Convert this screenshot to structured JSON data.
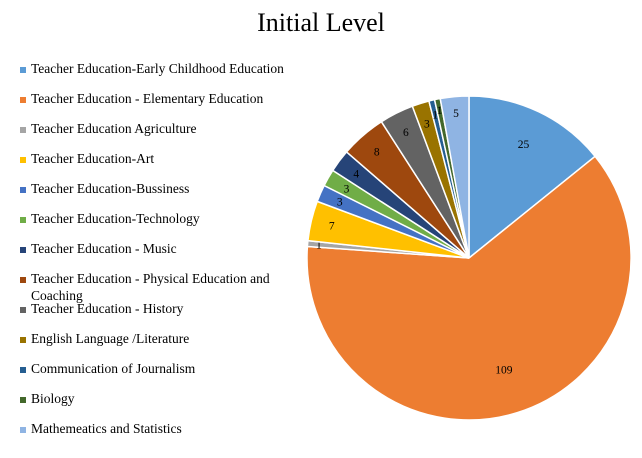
{
  "chart_data": {
    "type": "pie",
    "title": "Initial Level",
    "legend_position": "left",
    "categories": [
      "Teacher Education-Early Childhood Education",
      "Teacher Education - Elementary Education",
      "Teacher Education Agriculture",
      "Teacher Education-Art",
      "Teacher Education-Bussiness",
      "Teacher Education-Technology",
      "Teacher Education - Music",
      "Teacher Education - Physical Education and Coaching",
      "Teacher Education - History",
      "English Language /Literature",
      "Communication of Journalism",
      "Biology",
      "Mathemeatics and Statistics"
    ],
    "values": [
      25,
      109,
      1,
      7,
      3,
      3,
      4,
      8,
      6,
      3,
      1,
      1,
      5
    ],
    "colors": [
      "#5B9BD5",
      "#ED7D31",
      "#A5A5A5",
      "#FFC000",
      "#4472C4",
      "#70AD47",
      "#264478",
      "#9E480E",
      "#636363",
      "#997300",
      "#255E91",
      "#43682B",
      "#8FB4E3"
    ]
  }
}
